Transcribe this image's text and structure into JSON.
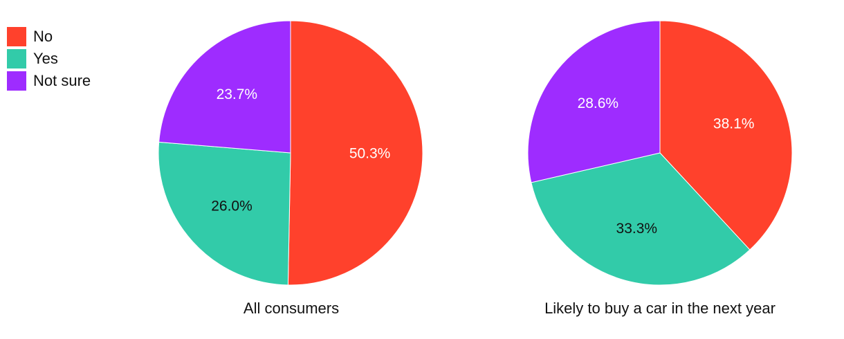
{
  "chart_data": [
    {
      "type": "pie",
      "title": "All consumers",
      "categories": [
        "No",
        "Yes",
        "Not sure"
      ],
      "values": [
        50.3,
        26.0,
        23.7
      ],
      "data_labels": [
        "50.3%",
        "26.0%",
        "23.7%"
      ],
      "colors": [
        "#ff412c",
        "#32cba9",
        "#9e2cff"
      ],
      "label_colors": [
        "#ffffff",
        "#111111",
        "#ffffff"
      ],
      "start_angle_deg": 0,
      "direction": "clockwise",
      "legend_position": "top-left"
    },
    {
      "type": "pie",
      "title": "Likely to buy a car in the next year",
      "categories": [
        "No",
        "Yes",
        "Not sure"
      ],
      "values": [
        38.1,
        33.3,
        28.6
      ],
      "data_labels": [
        "38.1%",
        "33.3%",
        "28.6%"
      ],
      "colors": [
        "#ff412c",
        "#32cba9",
        "#9e2cff"
      ],
      "label_colors": [
        "#ffffff",
        "#111111",
        "#ffffff"
      ],
      "start_angle_deg": 0,
      "direction": "clockwise",
      "legend_position": "top-left"
    }
  ],
  "legend": {
    "items": [
      {
        "label": "No",
        "color": "#ff412c"
      },
      {
        "label": "Yes",
        "color": "#32cba9"
      },
      {
        "label": "Not sure",
        "color": "#9e2cff"
      }
    ]
  }
}
